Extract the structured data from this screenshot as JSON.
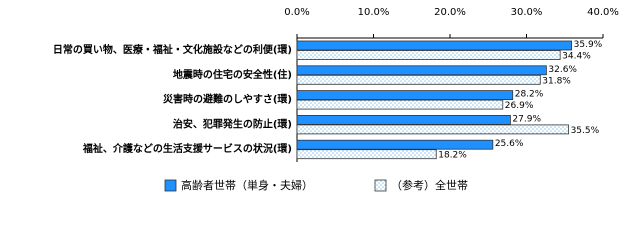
{
  "chart_data": {
    "type": "hbar",
    "categories": [
      "日常の買い物、医療・福祉・文化施設などの利便(環)",
      "地震時の住宅の安全性(住)",
      "災害時の避難のしやすさ(環)",
      "治安、犯罪発生の防止(環)",
      "福祉、介護などの生活支援サービスの状況(環)"
    ],
    "series": [
      {
        "name": "高齢者世帯（単身・夫婦）",
        "color": "#1e90ff",
        "values": [
          35.9,
          32.6,
          28.2,
          27.9,
          25.6
        ],
        "value_labels": [
          "35.9%",
          "32.6%",
          "28.2%",
          "27.9%",
          "25.6%"
        ]
      },
      {
        "name": "（参考）全世帯",
        "color": "#8ec8ee",
        "values": [
          34.4,
          31.8,
          26.9,
          35.5,
          18.2
        ],
        "value_labels": [
          "34.4%",
          "31.8%",
          "26.9%",
          "35.5%",
          "18.2%"
        ]
      }
    ],
    "xlim": [
      0,
      40
    ],
    "xticks": [
      {
        "value": 0,
        "label": "0.0%"
      },
      {
        "value": 10,
        "label": "10.0%"
      },
      {
        "value": 20,
        "label": "20.0%"
      },
      {
        "value": 30,
        "label": "30.0%"
      },
      {
        "value": 40,
        "label": "40.0%"
      }
    ],
    "grid": false
  }
}
